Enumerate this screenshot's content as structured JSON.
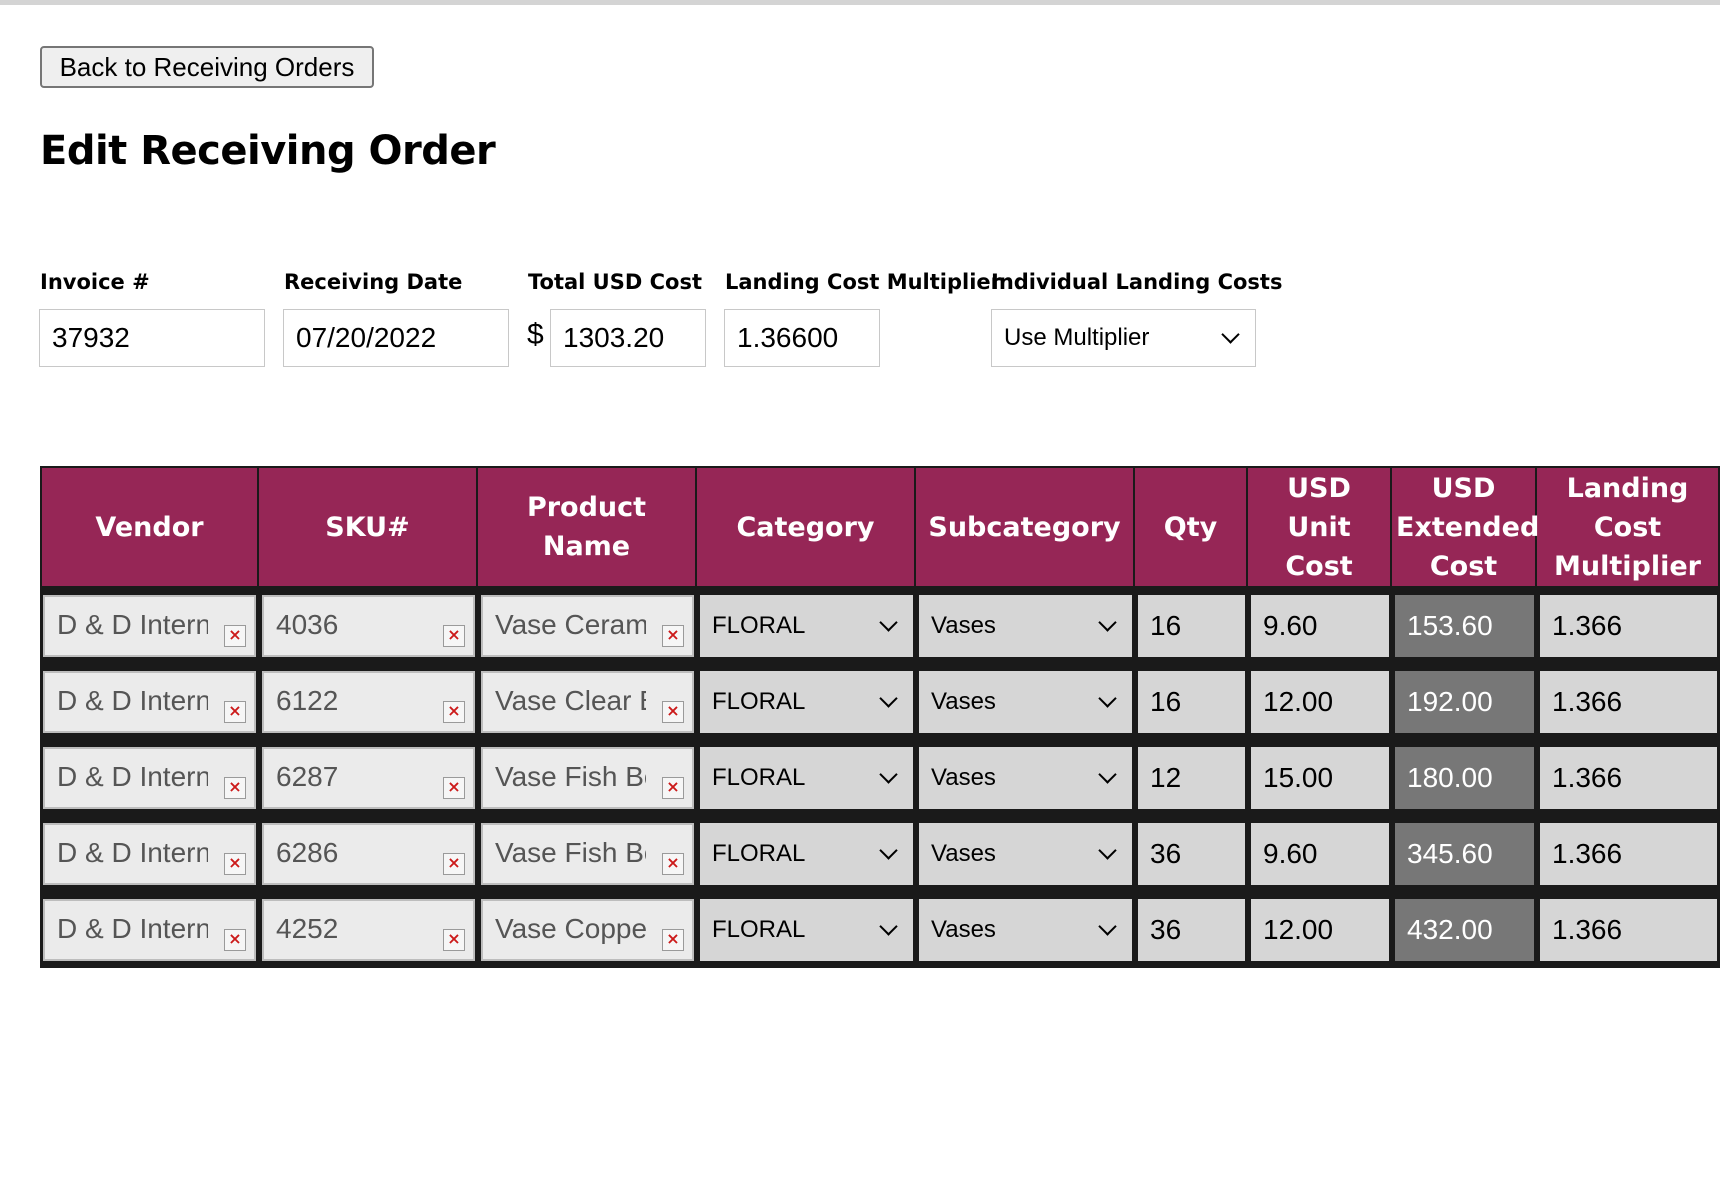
{
  "header": {
    "back_button": "Back to Receiving Orders",
    "title": "Edit Receiving Order"
  },
  "form": {
    "invoice_label": "Invoice #",
    "invoice_value": "37932",
    "date_label": "Receiving Date",
    "date_value": "07/20/2022",
    "total_label": "Total USD Cost",
    "currency_symbol": "$",
    "total_value": "1303.20",
    "multiplier_label": "Landing Cost Multiplier",
    "multiplier_value": "1.36600",
    "landing_label": "Individual Landing Costs",
    "landing_value": "Use Multiplier"
  },
  "table": {
    "columns": [
      "Vendor",
      "SKU#",
      "Product Name",
      "Category",
      "Subcategory",
      "Qty",
      "USD Unit Cost",
      "USD Extended Cost",
      "Landing Cost Multiplier"
    ],
    "clear_glyph": "×",
    "rows": [
      {
        "vendor": "D & D International",
        "sku": "4036",
        "product": "Vase Ceramic",
        "category": "FLORAL",
        "subcategory": "Vases",
        "qty": "16",
        "unit_cost": "9.60",
        "extended_cost": "153.60",
        "multiplier": "1.366"
      },
      {
        "vendor": "D & D International",
        "sku": "6122",
        "product": "Vase Clear Bowl",
        "category": "FLORAL",
        "subcategory": "Vases",
        "qty": "16",
        "unit_cost": "12.00",
        "extended_cost": "192.00",
        "multiplier": "1.366"
      },
      {
        "vendor": "D & D International",
        "sku": "6287",
        "product": "Vase Fish Bowl",
        "category": "FLORAL",
        "subcategory": "Vases",
        "qty": "12",
        "unit_cost": "15.00",
        "extended_cost": "180.00",
        "multiplier": "1.366"
      },
      {
        "vendor": "D & D International",
        "sku": "6286",
        "product": "Vase Fish Bowl",
        "category": "FLORAL",
        "subcategory": "Vases",
        "qty": "36",
        "unit_cost": "9.60",
        "extended_cost": "345.60",
        "multiplier": "1.366"
      },
      {
        "vendor": "D & D International",
        "sku": "4252",
        "product": "Vase Copper",
        "category": "FLORAL",
        "subcategory": "Vases",
        "qty": "36",
        "unit_cost": "12.00",
        "extended_cost": "432.00",
        "multiplier": "1.366"
      }
    ]
  },
  "colors": {
    "header_bg": "#962656",
    "table_frame": "#1a1a1a",
    "cell_bg": "#d6d6d6",
    "extended_cost_bg": "#777777"
  }
}
